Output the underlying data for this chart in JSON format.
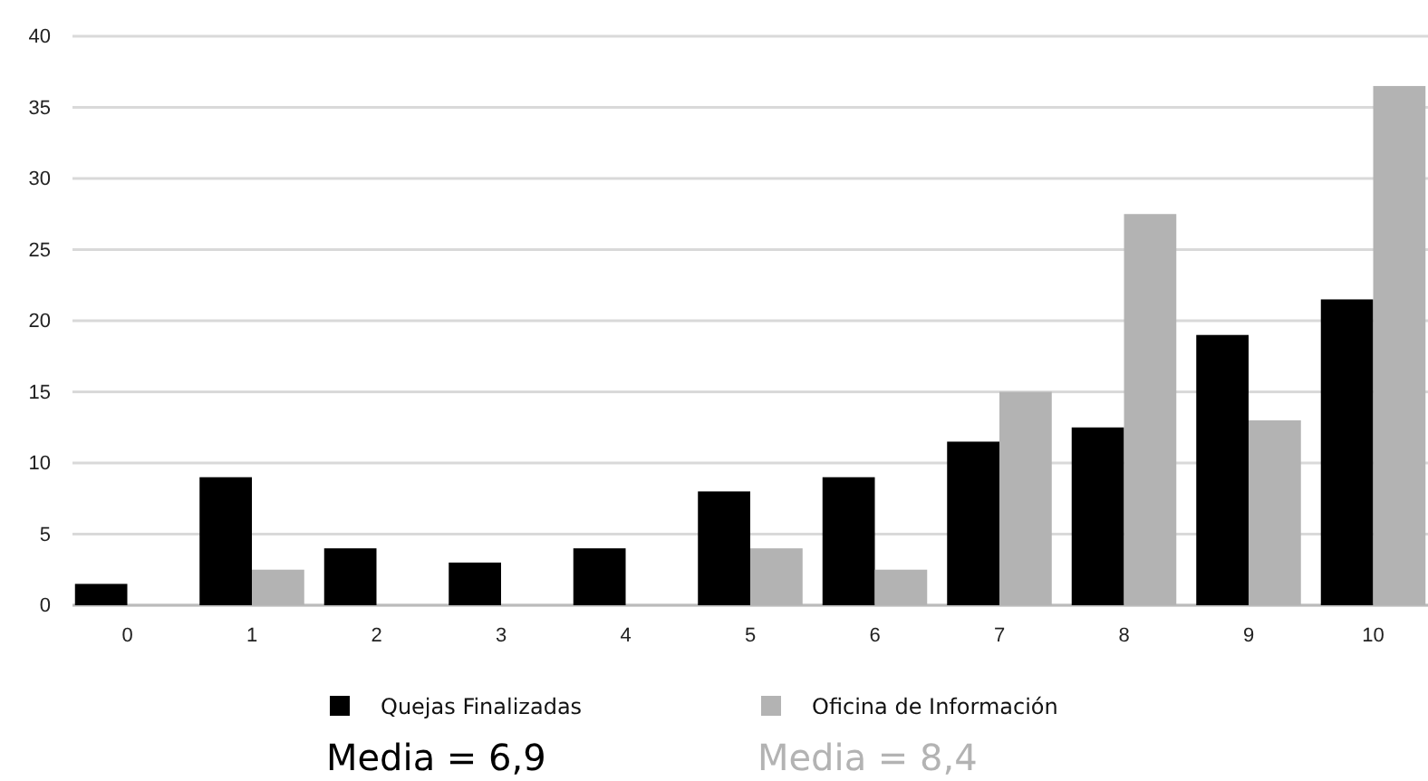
{
  "chart_data": {
    "type": "bar",
    "categories": [
      "0",
      "1",
      "2",
      "3",
      "4",
      "5",
      "6",
      "7",
      "8",
      "9",
      "10"
    ],
    "series": [
      {
        "name": "Quejas Finalizadas",
        "color": "#000000",
        "values": [
          1.5,
          9,
          4,
          3,
          4,
          8,
          9,
          11.5,
          12.5,
          19,
          21.5
        ]
      },
      {
        "name": "Oficina de Información",
        "color": "#b3b3b3",
        "values": [
          0,
          2.5,
          0,
          0,
          0,
          4,
          2.5,
          15,
          27.5,
          13,
          36.5
        ]
      }
    ],
    "ylim": [
      0,
      40
    ],
    "yticks": [
      0,
      5,
      10,
      15,
      20,
      25,
      30,
      35,
      40
    ],
    "grid": "y",
    "legend": "bottom",
    "annotations": [
      "Media = 6,9",
      "Media = 8,4"
    ]
  }
}
